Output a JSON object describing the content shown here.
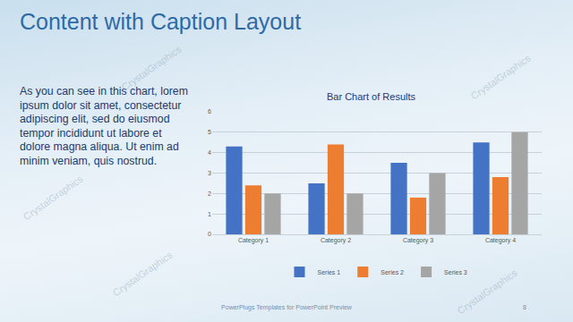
{
  "slide": {
    "title": "Content with Caption Layout",
    "caption": "As you can see in this chart, lorem ipsum dolor sit amet, consectetur adipiscing elit, sed do eiusmod tempor incididunt ut labore et dolore magna aliqua. Ut enim ad minim veniam, quis nostrud.",
    "footer": "PowerPlugs Templates for PowerPoint Preview",
    "page_number": 8,
    "watermark": "CrystalGraphics"
  },
  "chart_data": {
    "type": "bar",
    "title": "Bar Chart of Results",
    "categories": [
      "Category 1",
      "Category 2",
      "Category 3",
      "Category 4"
    ],
    "series": [
      {
        "name": "Series 1",
        "color": "#4472c4",
        "values": [
          4.3,
          2.5,
          3.5,
          4.5
        ]
      },
      {
        "name": "Series 2",
        "color": "#ed7d31",
        "values": [
          2.4,
          4.4,
          1.8,
          2.8
        ]
      },
      {
        "name": "Series 3",
        "color": "#a5a5a5",
        "values": [
          2.0,
          2.0,
          3.0,
          5.0
        ]
      }
    ],
    "ylim": [
      0,
      6
    ],
    "yticks": [
      0,
      1,
      2,
      3,
      4,
      5,
      6
    ],
    "grid": true,
    "legend": "bottom"
  }
}
